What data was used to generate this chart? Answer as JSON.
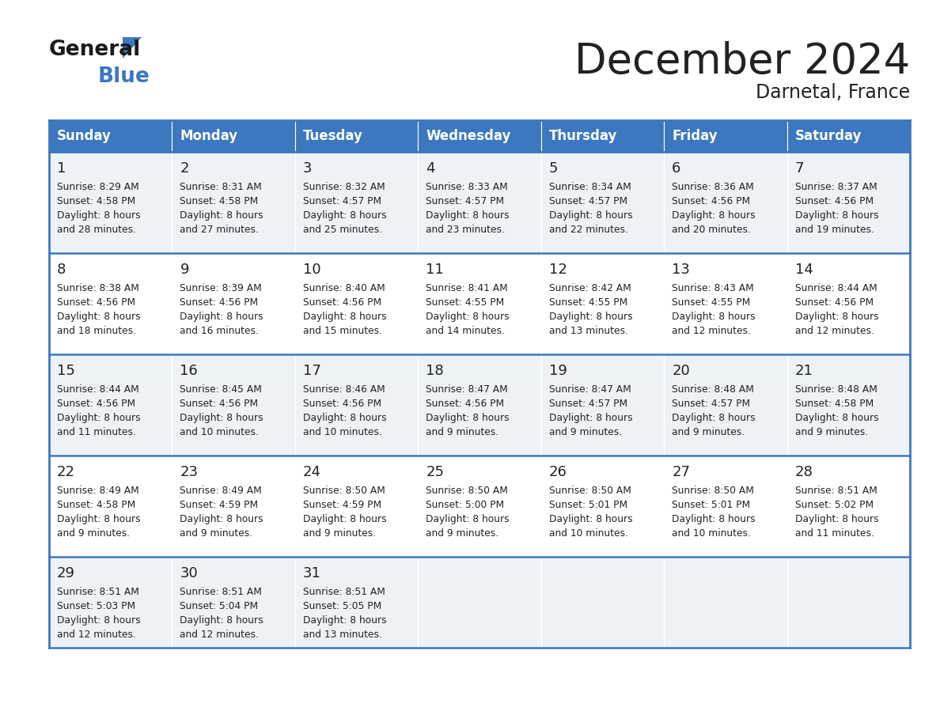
{
  "title": "December 2024",
  "subtitle": "Darnetal, France",
  "header_color": "#3b78bf",
  "header_text_color": "#ffffff",
  "cell_bg_even": "#eef2f7",
  "cell_bg_odd": "#ffffff",
  "border_color": "#3b78bf",
  "text_color": "#222222",
  "days_of_week": [
    "Sunday",
    "Monday",
    "Tuesday",
    "Wednesday",
    "Thursday",
    "Friday",
    "Saturday"
  ],
  "logo_general_color": "#1a1a1a",
  "logo_blue_color": "#3b78bf",
  "fig_width": 11.88,
  "fig_height": 9.18,
  "calendar_data": [
    [
      {
        "day": "1",
        "sunrise": "8:29 AM",
        "sunset": "4:58 PM",
        "daylight_h": "8 hours",
        "daylight_m": "and 28 minutes."
      },
      {
        "day": "2",
        "sunrise": "8:31 AM",
        "sunset": "4:58 PM",
        "daylight_h": "8 hours",
        "daylight_m": "and 27 minutes."
      },
      {
        "day": "3",
        "sunrise": "8:32 AM",
        "sunset": "4:57 PM",
        "daylight_h": "8 hours",
        "daylight_m": "and 25 minutes."
      },
      {
        "day": "4",
        "sunrise": "8:33 AM",
        "sunset": "4:57 PM",
        "daylight_h": "8 hours",
        "daylight_m": "and 23 minutes."
      },
      {
        "day": "5",
        "sunrise": "8:34 AM",
        "sunset": "4:57 PM",
        "daylight_h": "8 hours",
        "daylight_m": "and 22 minutes."
      },
      {
        "day": "6",
        "sunrise": "8:36 AM",
        "sunset": "4:56 PM",
        "daylight_h": "8 hours",
        "daylight_m": "and 20 minutes."
      },
      {
        "day": "7",
        "sunrise": "8:37 AM",
        "sunset": "4:56 PM",
        "daylight_h": "8 hours",
        "daylight_m": "and 19 minutes."
      }
    ],
    [
      {
        "day": "8",
        "sunrise": "8:38 AM",
        "sunset": "4:56 PM",
        "daylight_h": "8 hours",
        "daylight_m": "and 18 minutes."
      },
      {
        "day": "9",
        "sunrise": "8:39 AM",
        "sunset": "4:56 PM",
        "daylight_h": "8 hours",
        "daylight_m": "and 16 minutes."
      },
      {
        "day": "10",
        "sunrise": "8:40 AM",
        "sunset": "4:56 PM",
        "daylight_h": "8 hours",
        "daylight_m": "and 15 minutes."
      },
      {
        "day": "11",
        "sunrise": "8:41 AM",
        "sunset": "4:55 PM",
        "daylight_h": "8 hours",
        "daylight_m": "and 14 minutes."
      },
      {
        "day": "12",
        "sunrise": "8:42 AM",
        "sunset": "4:55 PM",
        "daylight_h": "8 hours",
        "daylight_m": "and 13 minutes."
      },
      {
        "day": "13",
        "sunrise": "8:43 AM",
        "sunset": "4:55 PM",
        "daylight_h": "8 hours",
        "daylight_m": "and 12 minutes."
      },
      {
        "day": "14",
        "sunrise": "8:44 AM",
        "sunset": "4:56 PM",
        "daylight_h": "8 hours",
        "daylight_m": "and 12 minutes."
      }
    ],
    [
      {
        "day": "15",
        "sunrise": "8:44 AM",
        "sunset": "4:56 PM",
        "daylight_h": "8 hours",
        "daylight_m": "and 11 minutes."
      },
      {
        "day": "16",
        "sunrise": "8:45 AM",
        "sunset": "4:56 PM",
        "daylight_h": "8 hours",
        "daylight_m": "and 10 minutes."
      },
      {
        "day": "17",
        "sunrise": "8:46 AM",
        "sunset": "4:56 PM",
        "daylight_h": "8 hours",
        "daylight_m": "and 10 minutes."
      },
      {
        "day": "18",
        "sunrise": "8:47 AM",
        "sunset": "4:56 PM",
        "daylight_h": "8 hours",
        "daylight_m": "and 9 minutes."
      },
      {
        "day": "19",
        "sunrise": "8:47 AM",
        "sunset": "4:57 PM",
        "daylight_h": "8 hours",
        "daylight_m": "and 9 minutes."
      },
      {
        "day": "20",
        "sunrise": "8:48 AM",
        "sunset": "4:57 PM",
        "daylight_h": "8 hours",
        "daylight_m": "and 9 minutes."
      },
      {
        "day": "21",
        "sunrise": "8:48 AM",
        "sunset": "4:58 PM",
        "daylight_h": "8 hours",
        "daylight_m": "and 9 minutes."
      }
    ],
    [
      {
        "day": "22",
        "sunrise": "8:49 AM",
        "sunset": "4:58 PM",
        "daylight_h": "8 hours",
        "daylight_m": "and 9 minutes."
      },
      {
        "day": "23",
        "sunrise": "8:49 AM",
        "sunset": "4:59 PM",
        "daylight_h": "8 hours",
        "daylight_m": "and 9 minutes."
      },
      {
        "day": "24",
        "sunrise": "8:50 AM",
        "sunset": "4:59 PM",
        "daylight_h": "8 hours",
        "daylight_m": "and 9 minutes."
      },
      {
        "day": "25",
        "sunrise": "8:50 AM",
        "sunset": "5:00 PM",
        "daylight_h": "8 hours",
        "daylight_m": "and 9 minutes."
      },
      {
        "day": "26",
        "sunrise": "8:50 AM",
        "sunset": "5:01 PM",
        "daylight_h": "8 hours",
        "daylight_m": "and 10 minutes."
      },
      {
        "day": "27",
        "sunrise": "8:50 AM",
        "sunset": "5:01 PM",
        "daylight_h": "8 hours",
        "daylight_m": "and 10 minutes."
      },
      {
        "day": "28",
        "sunrise": "8:51 AM",
        "sunset": "5:02 PM",
        "daylight_h": "8 hours",
        "daylight_m": "and 11 minutes."
      }
    ],
    [
      {
        "day": "29",
        "sunrise": "8:51 AM",
        "sunset": "5:03 PM",
        "daylight_h": "8 hours",
        "daylight_m": "and 12 minutes."
      },
      {
        "day": "30",
        "sunrise": "8:51 AM",
        "sunset": "5:04 PM",
        "daylight_h": "8 hours",
        "daylight_m": "and 12 minutes."
      },
      {
        "day": "31",
        "sunrise": "8:51 AM",
        "sunset": "5:05 PM",
        "daylight_h": "8 hours",
        "daylight_m": "and 13 minutes."
      },
      null,
      null,
      null,
      null
    ]
  ]
}
